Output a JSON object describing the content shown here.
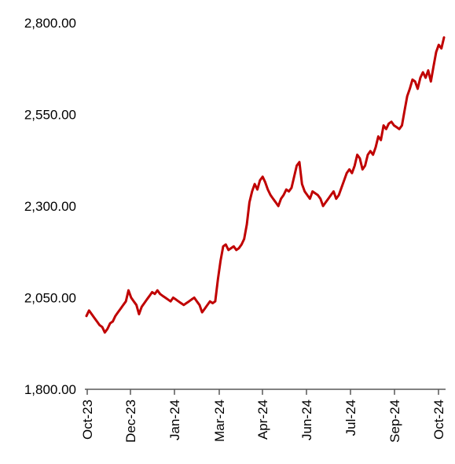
{
  "chart_data": {
    "type": "line",
    "title": "",
    "xlabel": "",
    "ylabel": "",
    "ylim": [
      1800,
      2800
    ],
    "y_ticks": [
      {
        "value": 1800,
        "label": "1,800.00"
      },
      {
        "value": 2050,
        "label": "2,050.00"
      },
      {
        "value": 2300,
        "label": "2,300.00"
      },
      {
        "value": 2550,
        "label": "2,550.00"
      },
      {
        "value": 2800,
        "label": "2,800.00"
      }
    ],
    "x_ticks": [
      "Oct-23",
      "Dec-23",
      "Jan-24",
      "Mar-24",
      "Apr-24",
      "Jun-24",
      "Jul-24",
      "Sep-24",
      "Oct-24"
    ],
    "grid": false,
    "legend": "none",
    "color": "#C00000",
    "series": [
      {
        "values": [
          2000,
          2015,
          2005,
          1995,
          1985,
          1975,
          1970,
          1955,
          1965,
          1980,
          1985,
          2000,
          2010,
          2020,
          2030,
          2040,
          2070,
          2050,
          2040,
          2030,
          2005,
          2025,
          2035,
          2045,
          2055,
          2065,
          2060,
          2070,
          2060,
          2055,
          2050,
          2045,
          2040,
          2050,
          2045,
          2040,
          2035,
          2030,
          2035,
          2040,
          2045,
          2050,
          2040,
          2030,
          2010,
          2020,
          2030,
          2040,
          2035,
          2040,
          2100,
          2150,
          2190,
          2195,
          2180,
          2185,
          2190,
          2180,
          2185,
          2195,
          2210,
          2250,
          2310,
          2340,
          2360,
          2345,
          2370,
          2380,
          2365,
          2345,
          2330,
          2320,
          2310,
          2300,
          2320,
          2330,
          2345,
          2340,
          2350,
          2380,
          2410,
          2420,
          2360,
          2340,
          2330,
          2320,
          2340,
          2335,
          2330,
          2320,
          2300,
          2310,
          2320,
          2330,
          2340,
          2320,
          2330,
          2350,
          2370,
          2390,
          2400,
          2390,
          2410,
          2440,
          2430,
          2400,
          2410,
          2440,
          2450,
          2440,
          2460,
          2490,
          2480,
          2520,
          2510,
          2525,
          2530,
          2520,
          2515,
          2510,
          2520,
          2560,
          2600,
          2620,
          2645,
          2640,
          2620,
          2650,
          2665,
          2650,
          2670,
          2640,
          2680,
          2720,
          2740,
          2730,
          2760
        ]
      }
    ]
  }
}
